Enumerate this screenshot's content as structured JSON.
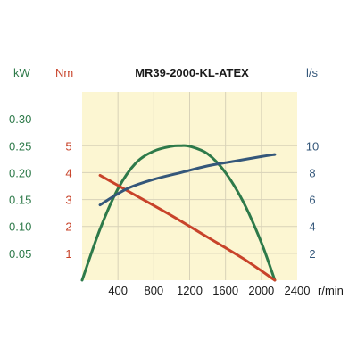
{
  "colors": {
    "background": "#fcf6d2",
    "grid": "#d8d2b8",
    "power": "#2e7a4a",
    "torque": "#c8432a",
    "flow": "#34577a",
    "text": "#1a1a1a"
  },
  "chart_data": {
    "type": "line",
    "title": "MR39-2000-KL-ATEX",
    "x_axis": {
      "unit": "r/min",
      "range": [
        0,
        2400
      ],
      "ticks": [
        400,
        800,
        1200,
        1600,
        2000,
        2400
      ]
    },
    "y_axes": {
      "power": {
        "unit": "kW",
        "range": [
          0,
          0.35
        ],
        "ticks": [
          "0.05",
          "0.10",
          "0.15",
          "0.20",
          "0.25",
          "0.30"
        ]
      },
      "torque": {
        "unit": "Nm",
        "range": [
          0,
          7
        ],
        "ticks": [
          "1",
          "2",
          "3",
          "4",
          "5"
        ]
      },
      "flow": {
        "unit": "l/s",
        "range": [
          0,
          14
        ],
        "ticks": [
          "2",
          "4",
          "6",
          "8",
          "10"
        ]
      }
    },
    "grid": true,
    "series": [
      {
        "key": "power",
        "axis": "power",
        "x": [
          0,
          200,
          400,
          600,
          800,
          1000,
          1100,
          1200,
          1400,
          1600,
          1800,
          2000,
          2150
        ],
        "y": [
          0,
          0.095,
          0.17,
          0.218,
          0.24,
          0.249,
          0.25,
          0.249,
          0.235,
          0.2,
          0.145,
          0.07,
          0
        ]
      },
      {
        "key": "torque",
        "axis": "torque",
        "x": [
          200,
          600,
          1000,
          1400,
          1800,
          2150
        ],
        "y": [
          3.9,
          3.15,
          2.4,
          1.6,
          0.8,
          0
        ]
      },
      {
        "key": "flow",
        "axis": "flow",
        "x": [
          200,
          500,
          800,
          1100,
          1400,
          1700,
          2000,
          2150
        ],
        "y": [
          5.6,
          6.8,
          7.5,
          8.0,
          8.5,
          8.85,
          9.2,
          9.35
        ]
      }
    ]
  }
}
